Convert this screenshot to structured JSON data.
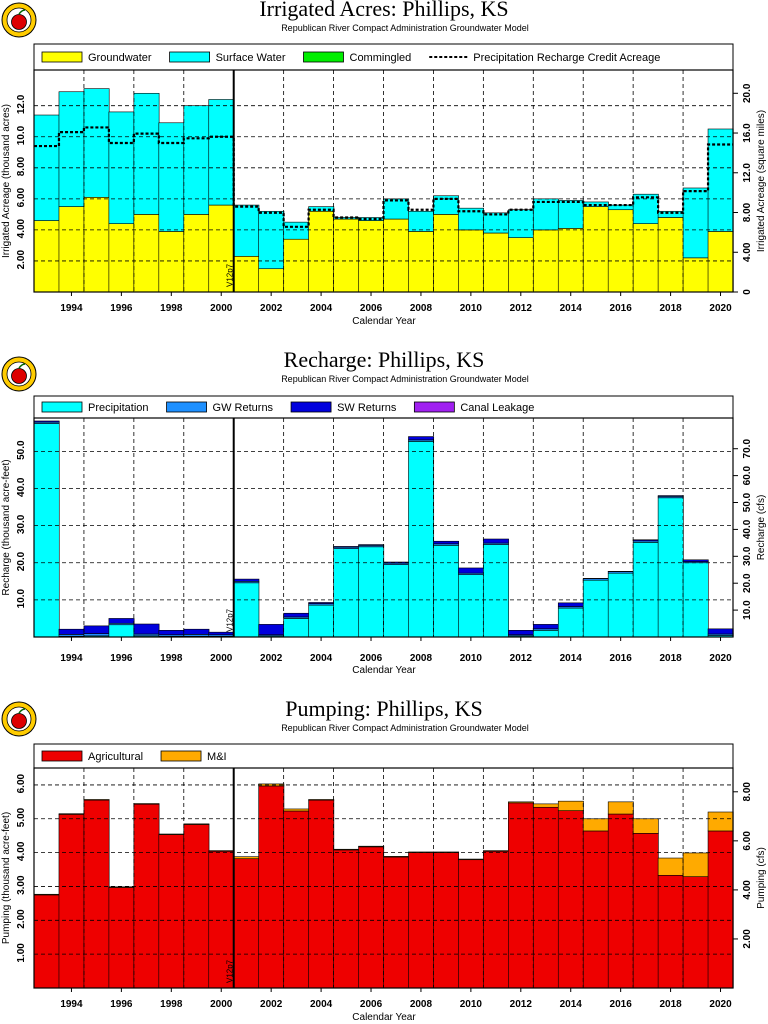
{
  "chart_data": [
    {
      "type": "bar",
      "title": "Irrigated Acres: Phillips, KS",
      "subtitle": "Republican River Compact Administration Groundwater Model",
      "xlabel": "Calendar Year",
      "ylabel": "Irrigated Acreage (thousand acres)",
      "y2label": "Irrigated Acreage (square miles)",
      "categories": [
        1993,
        1994,
        1995,
        1996,
        1997,
        1998,
        1999,
        2000,
        2001,
        2002,
        2003,
        2004,
        2005,
        2006,
        2007,
        2008,
        2009,
        2010,
        2011,
        2012,
        2013,
        2014,
        2015,
        2016,
        2017,
        2018,
        2019,
        2020
      ],
      "xticks": [
        "1994",
        "1996",
        "1998",
        "2000",
        "2002",
        "2004",
        "2006",
        "2008",
        "2010",
        "2012",
        "2014",
        "2016",
        "2018",
        "2020"
      ],
      "ylim": [
        0,
        14.3
      ],
      "yticks": [
        "2.00",
        "4.00",
        "6.00",
        "8.00",
        "10.0",
        "12.0"
      ],
      "y2ticks": [
        "0",
        "4.00",
        "8.00",
        "12.0",
        "16.0",
        "20.0"
      ],
      "y2_scale": 1.5625,
      "series": [
        {
          "name": "Groundwater",
          "color": "#ffff00",
          "values": [
            4.6,
            5.5,
            6.1,
            4.4,
            5.0,
            3.9,
            5.0,
            5.6,
            2.3,
            1.5,
            3.4,
            5.2,
            4.7,
            4.6,
            4.7,
            3.9,
            5.0,
            4.0,
            3.8,
            3.5,
            4.0,
            4.1,
            5.5,
            5.3,
            4.4,
            4.8,
            2.2,
            3.9
          ]
        },
        {
          "name": "Surface Water",
          "color": "#00ffff",
          "values": [
            6.8,
            7.4,
            7.0,
            7.2,
            7.8,
            7.0,
            7.0,
            6.8,
            3.3,
            3.7,
            1.1,
            0.3,
            0.1,
            0.2,
            1.3,
            1.3,
            1.2,
            1.4,
            1.3,
            1.8,
            2.0,
            1.8,
            0.3,
            0.3,
            1.9,
            0.4,
            4.5,
            6.6
          ]
        },
        {
          "name": "Commingled",
          "color": "#00ee00",
          "values": [
            0,
            0,
            0,
            0,
            0,
            0,
            0,
            0,
            0,
            0,
            0,
            0,
            0,
            0,
            0,
            0,
            0,
            0,
            0,
            0,
            0,
            0,
            0,
            0,
            0,
            0,
            0,
            0
          ]
        }
      ],
      "line": {
        "name": "Precipitation Recharge Credit Acreage",
        "values": [
          9.4,
          10.3,
          10.6,
          9.6,
          10.2,
          9.6,
          9.9,
          10.0,
          5.5,
          5.1,
          4.2,
          5.3,
          4.8,
          4.7,
          5.9,
          5.3,
          6.0,
          5.2,
          5.0,
          5.3,
          5.8,
          5.8,
          5.6,
          5.6,
          6.1,
          5.1,
          6.5,
          9.5
        ]
      },
      "marker": {
        "label": "V12p7",
        "between": [
          2000,
          2001
        ]
      },
      "grid": true,
      "legend": "top"
    },
    {
      "type": "bar",
      "title": "Recharge: Phillips, KS",
      "subtitle": "Republican River Compact Administration Groundwater Model",
      "xlabel": "Calendar Year",
      "ylabel": "Recharge (thousand acre-feet)",
      "y2label": "Recharge (cfs)",
      "categories": [
        1993,
        1994,
        1995,
        1996,
        1997,
        1998,
        1999,
        2000,
        2001,
        2002,
        2003,
        2004,
        2005,
        2006,
        2007,
        2008,
        2009,
        2010,
        2011,
        2012,
        2013,
        2014,
        2015,
        2016,
        2017,
        2018,
        2019,
        2020
      ],
      "xticks": [
        "1994",
        "1996",
        "1998",
        "2000",
        "2002",
        "2004",
        "2006",
        "2008",
        "2010",
        "2012",
        "2014",
        "2016",
        "2018",
        "2020"
      ],
      "ylim": [
        0,
        59
      ],
      "yticks": [
        "10.0",
        "20.0",
        "30.0",
        "40.0",
        "50.0"
      ],
      "y2ticks": [
        "10.0",
        "20.0",
        "30.0",
        "40.0",
        "50.0",
        "60.0",
        "70.0"
      ],
      "y2_scale": 1.38,
      "series": [
        {
          "name": "Precipitation",
          "color": "#00ffff",
          "values": [
            57.5,
            0.2,
            0.3,
            3.3,
            0.3,
            0.2,
            0.2,
            0.2,
            14.6,
            0.3,
            5.0,
            8.6,
            23.8,
            24.3,
            19.5,
            52.7,
            24.7,
            16.8,
            24.9,
            0.3,
            1.8,
            7.8,
            15.3,
            17.2,
            25.5,
            37.5,
            20.0,
            0.4
          ]
        },
        {
          "name": "GW Returns",
          "color": "#1e90ff",
          "values": [
            0.4,
            0.5,
            0.6,
            0.4,
            0.5,
            0.4,
            0.5,
            0.4,
            0.4,
            0.3,
            0.4,
            0.4,
            0.4,
            0.4,
            0.4,
            0.4,
            0.4,
            0.4,
            0.4,
            0.3,
            0.4,
            0.4,
            0.4,
            0.4,
            0.4,
            0.4,
            0.3,
            0.4
          ]
        },
        {
          "name": "SW Returns",
          "color": "#0000dd",
          "values": [
            0.3,
            1.4,
            2.1,
            1.3,
            2.7,
            1.2,
            1.4,
            0.7,
            0.6,
            2.8,
            1.0,
            0.3,
            0.2,
            0.2,
            0.3,
            0.9,
            0.7,
            1.4,
            1.1,
            1.2,
            1.2,
            1.0,
            0.1,
            0.1,
            0.3,
            0.2,
            0.5,
            1.4
          ]
        },
        {
          "name": "Canal Leakage",
          "color": "#a020f0",
          "values": [
            0,
            0,
            0,
            0,
            0,
            0,
            0,
            0,
            0,
            0,
            0,
            0,
            0,
            0,
            0,
            0,
            0,
            0,
            0,
            0,
            0,
            0,
            0,
            0,
            0,
            0,
            0,
            0
          ]
        }
      ],
      "marker": {
        "label": "V12p7",
        "between": [
          2000,
          2001
        ]
      },
      "grid": true,
      "legend": "top"
    },
    {
      "type": "bar",
      "title": "Pumping: Phillips, KS",
      "subtitle": "Republican River Compact Administration Groundwater Model",
      "xlabel": "Calendar Year",
      "ylabel": "Pumping (thousand acre-feet)",
      "y2label": "Pumping (cfs)",
      "categories": [
        1993,
        1994,
        1995,
        1996,
        1997,
        1998,
        1999,
        2000,
        2001,
        2002,
        2003,
        2004,
        2005,
        2006,
        2007,
        2008,
        2009,
        2010,
        2011,
        2012,
        2013,
        2014,
        2015,
        2016,
        2017,
        2018,
        2019,
        2020
      ],
      "xticks": [
        "1994",
        "1996",
        "1998",
        "2000",
        "2002",
        "2004",
        "2006",
        "2008",
        "2010",
        "2012",
        "2014",
        "2016",
        "2018",
        "2020"
      ],
      "ylim": [
        0,
        6.5
      ],
      "yticks": [
        "1.00",
        "2.00",
        "3.00",
        "4.00",
        "5.00",
        "6.00"
      ],
      "y2ticks": [
        "2.00",
        "4.00",
        "6.00",
        "8.00"
      ],
      "y2_scale": 1.38,
      "series": [
        {
          "name": "Agricultural",
          "color": "#ee0000",
          "values": [
            2.75,
            5.13,
            5.55,
            2.97,
            5.43,
            4.53,
            4.83,
            4.04,
            3.82,
            5.97,
            5.23,
            5.55,
            4.08,
            4.17,
            3.87,
            4.0,
            4.0,
            3.79,
            4.04,
            5.47,
            5.34,
            5.24,
            4.64,
            5.14,
            4.57,
            3.33,
            3.29,
            4.64
          ]
        },
        {
          "name": "M&I",
          "color": "#ffaa00",
          "values": [
            0.02,
            0.02,
            0.02,
            0.02,
            0.02,
            0.02,
            0.02,
            0.02,
            0.06,
            0.06,
            0.06,
            0.02,
            0.02,
            0.02,
            0.02,
            0.02,
            0.02,
            0.02,
            0.02,
            0.03,
            0.1,
            0.28,
            0.36,
            0.36,
            0.43,
            0.51,
            0.7,
            0.56
          ]
        }
      ],
      "marker": {
        "label": "V12p7",
        "between": [
          2000,
          2001
        ]
      },
      "grid": true,
      "legend": "top"
    }
  ]
}
